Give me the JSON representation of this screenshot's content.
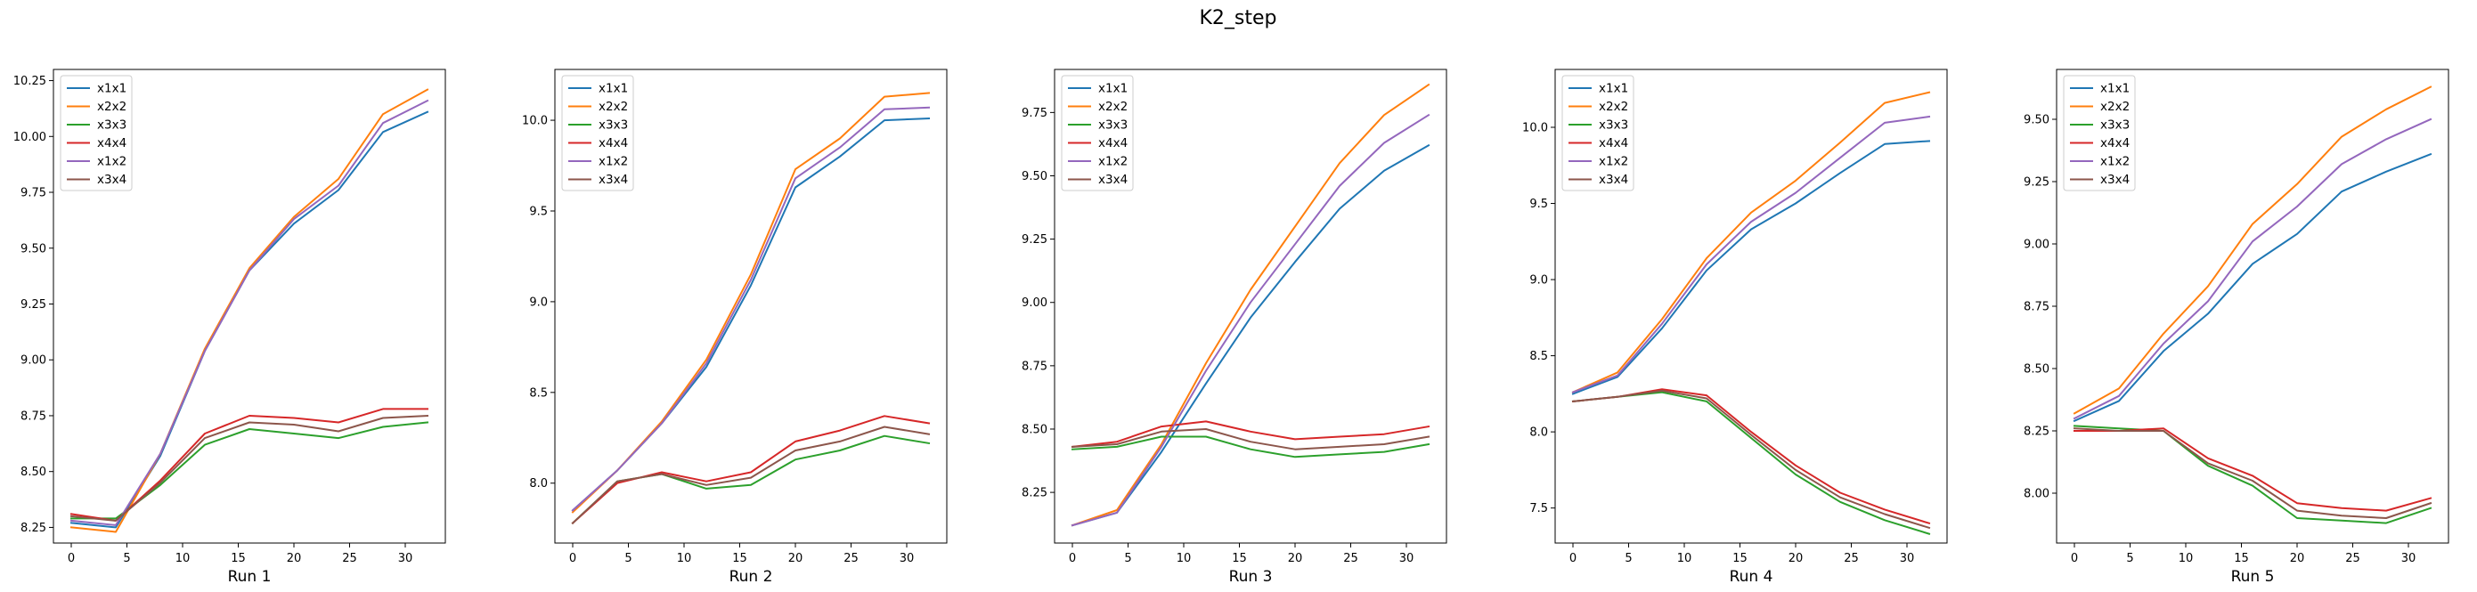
{
  "figure": {
    "title": "K2_step"
  },
  "chart_data": [
    {
      "type": "line",
      "title": "",
      "xlabel": "Run 1",
      "ylabel": "",
      "xlim": [
        -1.6,
        33.6
      ],
      "ylim": [
        8.18,
        10.3
      ],
      "xticks": [
        0,
        5,
        10,
        15,
        20,
        25,
        30
      ],
      "yticks": [
        8.25,
        8.5,
        8.75,
        9.0,
        9.25,
        9.5,
        9.75,
        10.0,
        10.25
      ],
      "ytick_labels": [
        "8.25",
        "8.50",
        "8.75",
        "9.00",
        "9.25",
        "9.50",
        "9.75",
        "10.00",
        "10.25"
      ],
      "grid": false,
      "legend": "upper left",
      "x": [
        0,
        4,
        8,
        12,
        16,
        20,
        24,
        28,
        32
      ],
      "series": [
        {
          "name": "x1x1",
          "color": "#1f77b4",
          "values": [
            8.27,
            8.25,
            8.57,
            9.04,
            9.4,
            9.61,
            9.76,
            10.02,
            10.11
          ]
        },
        {
          "name": "x2x2",
          "color": "#ff7f0e",
          "values": [
            8.25,
            8.23,
            8.58,
            9.05,
            9.41,
            9.64,
            9.81,
            10.1,
            10.21
          ]
        },
        {
          "name": "x3x3",
          "color": "#2ca02c",
          "values": [
            8.29,
            8.29,
            8.44,
            8.62,
            8.69,
            8.67,
            8.65,
            8.7,
            8.72
          ]
        },
        {
          "name": "x4x4",
          "color": "#d62728",
          "values": [
            8.31,
            8.28,
            8.46,
            8.67,
            8.75,
            8.74,
            8.72,
            8.78,
            8.78
          ]
        },
        {
          "name": "x1x2",
          "color": "#9467bd",
          "values": [
            8.28,
            8.26,
            8.58,
            9.04,
            9.4,
            9.63,
            9.78,
            10.06,
            10.16
          ]
        },
        {
          "name": "x3x4",
          "color": "#8c564b",
          "values": [
            8.3,
            8.28,
            8.45,
            8.65,
            8.72,
            8.71,
            8.68,
            8.74,
            8.75
          ]
        }
      ]
    },
    {
      "type": "line",
      "title": "",
      "xlabel": "Run 2",
      "ylabel": "",
      "xlim": [
        -1.6,
        33.6
      ],
      "ylim": [
        7.67,
        10.28
      ],
      "xticks": [
        0,
        5,
        10,
        15,
        20,
        25,
        30
      ],
      "yticks": [
        8.0,
        8.5,
        9.0,
        9.5,
        10.0
      ],
      "ytick_labels": [
        "8.0",
        "8.5",
        "9.0",
        "9.5",
        "10.0"
      ],
      "grid": false,
      "legend": "upper left",
      "x": [
        0,
        4,
        8,
        12,
        16,
        20,
        24,
        28,
        32
      ],
      "series": [
        {
          "name": "x1x1",
          "color": "#1f77b4",
          "values": [
            7.85,
            8.07,
            8.33,
            8.64,
            9.09,
            9.63,
            9.8,
            10.0,
            10.01
          ]
        },
        {
          "name": "x2x2",
          "color": "#ff7f0e",
          "values": [
            7.84,
            8.07,
            8.34,
            8.68,
            9.15,
            9.73,
            9.9,
            10.13,
            10.15
          ]
        },
        {
          "name": "x3x3",
          "color": "#2ca02c",
          "values": [
            7.78,
            8.01,
            8.05,
            7.97,
            7.99,
            8.13,
            8.18,
            8.26,
            8.22
          ]
        },
        {
          "name": "x4x4",
          "color": "#d62728",
          "values": [
            7.78,
            8.0,
            8.06,
            8.01,
            8.06,
            8.23,
            8.29,
            8.37,
            8.33
          ]
        },
        {
          "name": "x1x2",
          "color": "#9467bd",
          "values": [
            7.85,
            8.07,
            8.33,
            8.66,
            9.12,
            9.68,
            9.85,
            10.06,
            10.07
          ]
        },
        {
          "name": "x3x4",
          "color": "#8c564b",
          "values": [
            7.78,
            8.01,
            8.05,
            7.99,
            8.03,
            8.18,
            8.23,
            8.31,
            8.27
          ]
        }
      ]
    },
    {
      "type": "line",
      "title": "",
      "xlabel": "Run 3",
      "ylabel": "",
      "xlim": [
        -1.6,
        33.6
      ],
      "ylim": [
        8.05,
        9.92
      ],
      "xticks": [
        0,
        5,
        10,
        15,
        20,
        25,
        30
      ],
      "yticks": [
        8.25,
        8.5,
        8.75,
        9.0,
        9.25,
        9.5,
        9.75
      ],
      "ytick_labels": [
        "8.25",
        "8.50",
        "8.75",
        "9.00",
        "9.25",
        "9.50",
        "9.75"
      ],
      "grid": false,
      "legend": "upper left",
      "x": [
        0,
        4,
        8,
        12,
        16,
        20,
        24,
        28,
        32
      ],
      "series": [
        {
          "name": "x1x1",
          "color": "#1f77b4",
          "values": [
            8.12,
            8.17,
            8.41,
            8.68,
            8.94,
            9.16,
            9.37,
            9.52,
            9.62
          ]
        },
        {
          "name": "x2x2",
          "color": "#ff7f0e",
          "values": [
            8.12,
            8.18,
            8.44,
            8.76,
            9.05,
            9.3,
            9.55,
            9.74,
            9.86
          ]
        },
        {
          "name": "x3x3",
          "color": "#2ca02c",
          "values": [
            8.42,
            8.43,
            8.47,
            8.47,
            8.42,
            8.39,
            8.4,
            8.41,
            8.44
          ]
        },
        {
          "name": "x4x4",
          "color": "#d62728",
          "values": [
            8.43,
            8.45,
            8.51,
            8.53,
            8.49,
            8.46,
            8.47,
            8.48,
            8.51
          ]
        },
        {
          "name": "x1x2",
          "color": "#9467bd",
          "values": [
            8.12,
            8.17,
            8.43,
            8.73,
            9.0,
            9.23,
            9.46,
            9.63,
            9.74
          ]
        },
        {
          "name": "x3x4",
          "color": "#8c564b",
          "values": [
            8.43,
            8.44,
            8.49,
            8.5,
            8.45,
            8.42,
            8.43,
            8.44,
            8.47
          ]
        }
      ]
    },
    {
      "type": "line",
      "title": "",
      "xlabel": "Run 4",
      "ylabel": "",
      "xlim": [
        -1.6,
        33.6
      ],
      "ylim": [
        7.27,
        10.38
      ],
      "xticks": [
        0,
        5,
        10,
        15,
        20,
        25,
        30
      ],
      "yticks": [
        7.5,
        8.0,
        8.5,
        9.0,
        9.5,
        10.0
      ],
      "ytick_labels": [
        "7.5",
        "8.0",
        "8.5",
        "9.0",
        "9.5",
        "10.0"
      ],
      "grid": false,
      "legend": "upper left",
      "x": [
        0,
        4,
        8,
        12,
        16,
        20,
        24,
        28,
        32
      ],
      "series": [
        {
          "name": "x1x1",
          "color": "#1f77b4",
          "values": [
            8.25,
            8.36,
            8.68,
            9.06,
            9.33,
            9.5,
            9.7,
            9.89,
            9.91
          ]
        },
        {
          "name": "x2x2",
          "color": "#ff7f0e",
          "values": [
            8.26,
            8.39,
            8.74,
            9.14,
            9.44,
            9.65,
            9.9,
            10.16,
            10.23
          ]
        },
        {
          "name": "x3x3",
          "color": "#2ca02c",
          "values": [
            8.2,
            8.23,
            8.26,
            8.2,
            7.96,
            7.72,
            7.54,
            7.42,
            7.33
          ]
        },
        {
          "name": "x4x4",
          "color": "#d62728",
          "values": [
            8.2,
            8.23,
            8.28,
            8.24,
            8.0,
            7.78,
            7.6,
            7.49,
            7.4
          ]
        },
        {
          "name": "x1x2",
          "color": "#9467bd",
          "values": [
            8.26,
            8.37,
            8.71,
            9.1,
            9.38,
            9.57,
            9.8,
            10.03,
            10.07
          ]
        },
        {
          "name": "x3x4",
          "color": "#8c564b",
          "values": [
            8.2,
            8.23,
            8.27,
            8.22,
            7.98,
            7.75,
            7.57,
            7.46,
            7.37
          ]
        }
      ]
    },
    {
      "type": "line",
      "title": "",
      "xlabel": "Run 5",
      "ylabel": "",
      "xlim": [
        -1.6,
        33.6
      ],
      "ylim": [
        7.8,
        9.7
      ],
      "xticks": [
        0,
        5,
        10,
        15,
        20,
        25,
        30
      ],
      "yticks": [
        8.0,
        8.25,
        8.5,
        8.75,
        9.0,
        9.25,
        9.5
      ],
      "ytick_labels": [
        "8.00",
        "8.25",
        "8.50",
        "8.75",
        "9.00",
        "9.25",
        "9.50"
      ],
      "grid": false,
      "legend": "upper left",
      "x": [
        0,
        4,
        8,
        12,
        16,
        20,
        24,
        28,
        32
      ],
      "series": [
        {
          "name": "x1x1",
          "color": "#1f77b4",
          "values": [
            8.29,
            8.37,
            8.57,
            8.72,
            8.92,
            9.04,
            9.21,
            9.29,
            9.36
          ]
        },
        {
          "name": "x2x2",
          "color": "#ff7f0e",
          "values": [
            8.32,
            8.42,
            8.64,
            8.83,
            9.08,
            9.24,
            9.43,
            9.54,
            9.63
          ]
        },
        {
          "name": "x3x3",
          "color": "#2ca02c",
          "values": [
            8.27,
            8.26,
            8.25,
            8.11,
            8.03,
            7.9,
            7.89,
            7.88,
            7.94
          ]
        },
        {
          "name": "x4x4",
          "color": "#d62728",
          "values": [
            8.25,
            8.25,
            8.26,
            8.14,
            8.07,
            7.96,
            7.94,
            7.93,
            7.98
          ]
        },
        {
          "name": "x1x2",
          "color": "#9467bd",
          "values": [
            8.3,
            8.39,
            8.6,
            8.77,
            9.01,
            9.15,
            9.32,
            9.42,
            9.5
          ]
        },
        {
          "name": "x3x4",
          "color": "#8c564b",
          "values": [
            8.26,
            8.25,
            8.25,
            8.12,
            8.05,
            7.93,
            7.91,
            7.9,
            7.96
          ]
        }
      ]
    }
  ]
}
